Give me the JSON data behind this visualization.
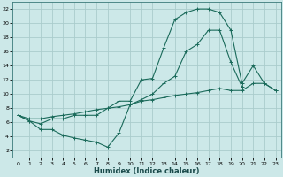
{
  "xlabel": "Humidex (Indice chaleur)",
  "bg_color": "#cce8e8",
  "grid_color": "#aacccc",
  "line_color": "#1a6a5a",
  "xlim": [
    -0.5,
    23.5
  ],
  "ylim": [
    1,
    23
  ],
  "xticks": [
    0,
    1,
    2,
    3,
    4,
    5,
    6,
    7,
    8,
    9,
    10,
    11,
    12,
    13,
    14,
    15,
    16,
    17,
    18,
    19,
    20,
    21,
    22,
    23
  ],
  "yticks": [
    2,
    4,
    6,
    8,
    10,
    12,
    14,
    16,
    18,
    20,
    22
  ],
  "series1_x": [
    0,
    1,
    2,
    3,
    4,
    5,
    6,
    7,
    8,
    9,
    10,
    11,
    12,
    13,
    14,
    15,
    16,
    17,
    18,
    19,
    20,
    21,
    22,
    23
  ],
  "series1_y": [
    7.0,
    6.2,
    5.8,
    6.5,
    6.5,
    7.0,
    7.0,
    7.0,
    8.0,
    9.0,
    9.0,
    12.0,
    12.2,
    16.5,
    20.5,
    21.5,
    22.0,
    22.0,
    21.5,
    19.0,
    11.5,
    14.0,
    11.5,
    10.5
  ],
  "series2_x": [
    0,
    1,
    2,
    3,
    4,
    5,
    6,
    7,
    8,
    9,
    10,
    11,
    12,
    13,
    14,
    15,
    16,
    17,
    18,
    19,
    20
  ],
  "series2_y": [
    7.0,
    6.2,
    5.0,
    5.0,
    4.2,
    3.8,
    3.5,
    3.2,
    2.5,
    4.5,
    8.5,
    9.2,
    10.0,
    11.5,
    12.5,
    16.0,
    17.0,
    19.0,
    19.0,
    14.5,
    11.0
  ],
  "series3_x": [
    0,
    1,
    2,
    3,
    4,
    5,
    6,
    7,
    8,
    9,
    10,
    11,
    12,
    13,
    14,
    15,
    16,
    17,
    18,
    19,
    20,
    21,
    22,
    23
  ],
  "series3_y": [
    7.0,
    6.5,
    6.5,
    6.8,
    7.0,
    7.2,
    7.5,
    7.8,
    8.0,
    8.2,
    8.5,
    9.0,
    9.2,
    9.5,
    9.8,
    10.0,
    10.2,
    10.5,
    10.8,
    10.5,
    10.5,
    11.5,
    11.5,
    10.5
  ]
}
